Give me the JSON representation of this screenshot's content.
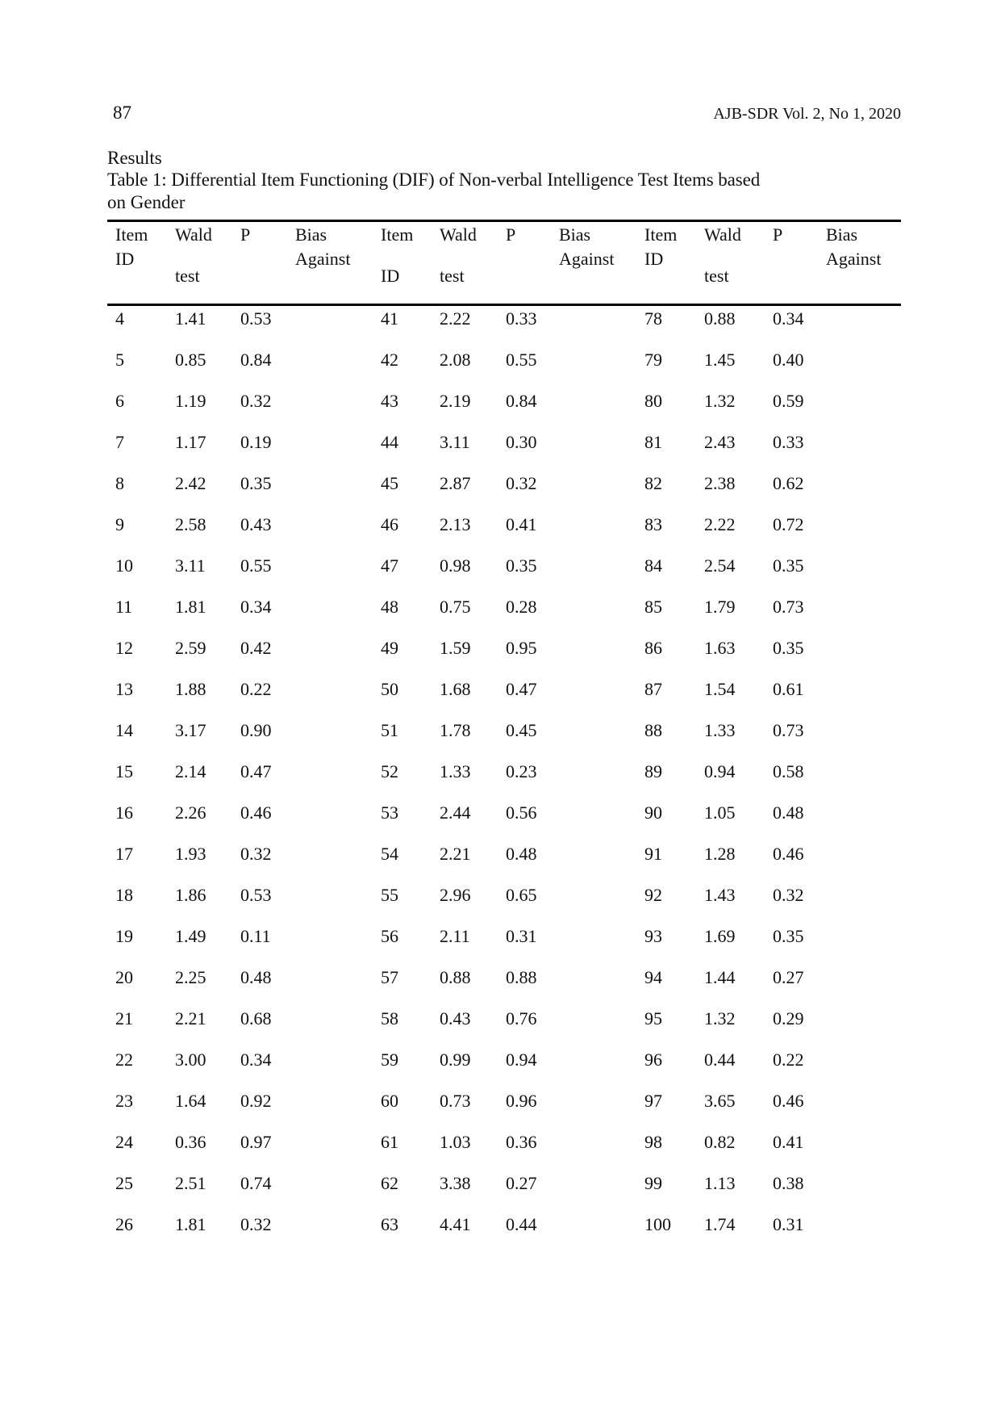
{
  "header": {
    "page_number": "87",
    "journal": "AJB-SDR Vol. 2, No 1, 2020"
  },
  "section_heading": "Results",
  "table": {
    "caption_line1": "Table 1: Differential Item Functioning (DIF) of Non-verbal Intelligence Test Items based",
    "caption_line2": "on Gender",
    "columns": [
      {
        "line1": "Item",
        "line2": "ID",
        "line2b": ""
      },
      {
        "line1": "Wald",
        "line2": "",
        "line2b": "test"
      },
      {
        "line1": "P",
        "line2": "",
        "line2b": ""
      },
      {
        "line1": "Bias",
        "line2": "Against",
        "line2b": ""
      },
      {
        "line1": "Item",
        "line2": "",
        "line2b": "ID"
      },
      {
        "line1": "Wald",
        "line2": "",
        "line2b": "test"
      },
      {
        "line1": "P",
        "line2": "",
        "line2b": ""
      },
      {
        "line1": "Bias",
        "line2": "Against",
        "line2b": ""
      },
      {
        "line1": "Item",
        "line2": "ID",
        "line2b": ""
      },
      {
        "line1": "Wald",
        "line2": "",
        "line2b": "test"
      },
      {
        "line1": "P",
        "line2": "",
        "line2b": ""
      },
      {
        "line1": "Bias",
        "line2": "Against",
        "line2b": ""
      }
    ],
    "rows": [
      [
        "4",
        "1.41",
        "0.53",
        "",
        "41",
        "2.22",
        "0.33",
        "",
        "78",
        "0.88",
        "0.34",
        ""
      ],
      [
        "5",
        "0.85",
        "0.84",
        "",
        "42",
        "2.08",
        "0.55",
        "",
        "79",
        "1.45",
        "0.40",
        ""
      ],
      [
        "6",
        "1.19",
        "0.32",
        "",
        "43",
        "2.19",
        "0.84",
        "",
        "80",
        "1.32",
        "0.59",
        ""
      ],
      [
        "7",
        "1.17",
        "0.19",
        "",
        "44",
        "3.11",
        "0.30",
        "",
        "81",
        "2.43",
        "0.33",
        ""
      ],
      [
        "8",
        "2.42",
        "0.35",
        "",
        "45",
        "2.87",
        "0.32",
        "",
        "82",
        "2.38",
        "0.62",
        ""
      ],
      [
        "9",
        "2.58",
        "0.43",
        "",
        "46",
        "2.13",
        "0.41",
        "",
        "83",
        "2.22",
        "0.72",
        ""
      ],
      [
        "10",
        "3.11",
        "0.55",
        "",
        "47",
        "0.98",
        "0.35",
        "",
        "84",
        "2.54",
        "0.35",
        ""
      ],
      [
        "11",
        "1.81",
        "0.34",
        "",
        "48",
        "0.75",
        "0.28",
        "",
        "85",
        "1.79",
        "0.73",
        ""
      ],
      [
        "12",
        "2.59",
        "0.42",
        "",
        "49",
        "1.59",
        "0.95",
        "",
        "86",
        "1.63",
        "0.35",
        ""
      ],
      [
        "13",
        "1.88",
        "0.22",
        "",
        "50",
        "1.68",
        "0.47",
        "",
        "87",
        "1.54",
        "0.61",
        ""
      ],
      [
        "14",
        "3.17",
        "0.90",
        "",
        "51",
        "1.78",
        "0.45",
        "",
        "88",
        "1.33",
        "0.73",
        ""
      ],
      [
        "15",
        "2.14",
        "0.47",
        "",
        "52",
        "1.33",
        "0.23",
        "",
        "89",
        "0.94",
        "0.58",
        ""
      ],
      [
        "16",
        "2.26",
        "0.46",
        "",
        "53",
        "2.44",
        "0.56",
        "",
        "90",
        "1.05",
        "0.48",
        ""
      ],
      [
        "17",
        "1.93",
        "0.32",
        "",
        "54",
        "2.21",
        "0.48",
        "",
        "91",
        "1.28",
        "0.46",
        ""
      ],
      [
        "18",
        "1.86",
        "0.53",
        "",
        "55",
        "2.96",
        "0.65",
        "",
        "92",
        "1.43",
        "0.32",
        ""
      ],
      [
        "19",
        "1.49",
        "0.11",
        "",
        "56",
        "2.11",
        "0.31",
        "",
        "93",
        "1.69",
        "0.35",
        ""
      ],
      [
        "20",
        "2.25",
        "0.48",
        "",
        "57",
        "0.88",
        "0.88",
        "",
        "94",
        "1.44",
        "0.27",
        ""
      ],
      [
        "21",
        "2.21",
        "0.68",
        "",
        "58",
        "0.43",
        "0.76",
        "",
        "95",
        "1.32",
        "0.29",
        ""
      ],
      [
        "22",
        "3.00",
        "0.34",
        "",
        "59",
        "0.99",
        "0.94",
        "",
        "96",
        "0.44",
        "0.22",
        ""
      ],
      [
        "23",
        "1.64",
        "0.92",
        "",
        "60",
        "0.73",
        "0.96",
        "",
        "97",
        "3.65",
        "0.46",
        ""
      ],
      [
        "24",
        "0.36",
        "0.97",
        "",
        "61",
        "1.03",
        "0.36",
        "",
        "98",
        "0.82",
        "0.41",
        ""
      ],
      [
        "25",
        "2.51",
        "0.74",
        "",
        "62",
        "3.38",
        "0.27",
        "",
        "99",
        "1.13",
        "0.38",
        ""
      ],
      [
        "26",
        "1.81",
        "0.32",
        "",
        "63",
        "4.41",
        "0.44",
        "",
        "100",
        "1.74",
        "0.31",
        ""
      ]
    ]
  }
}
